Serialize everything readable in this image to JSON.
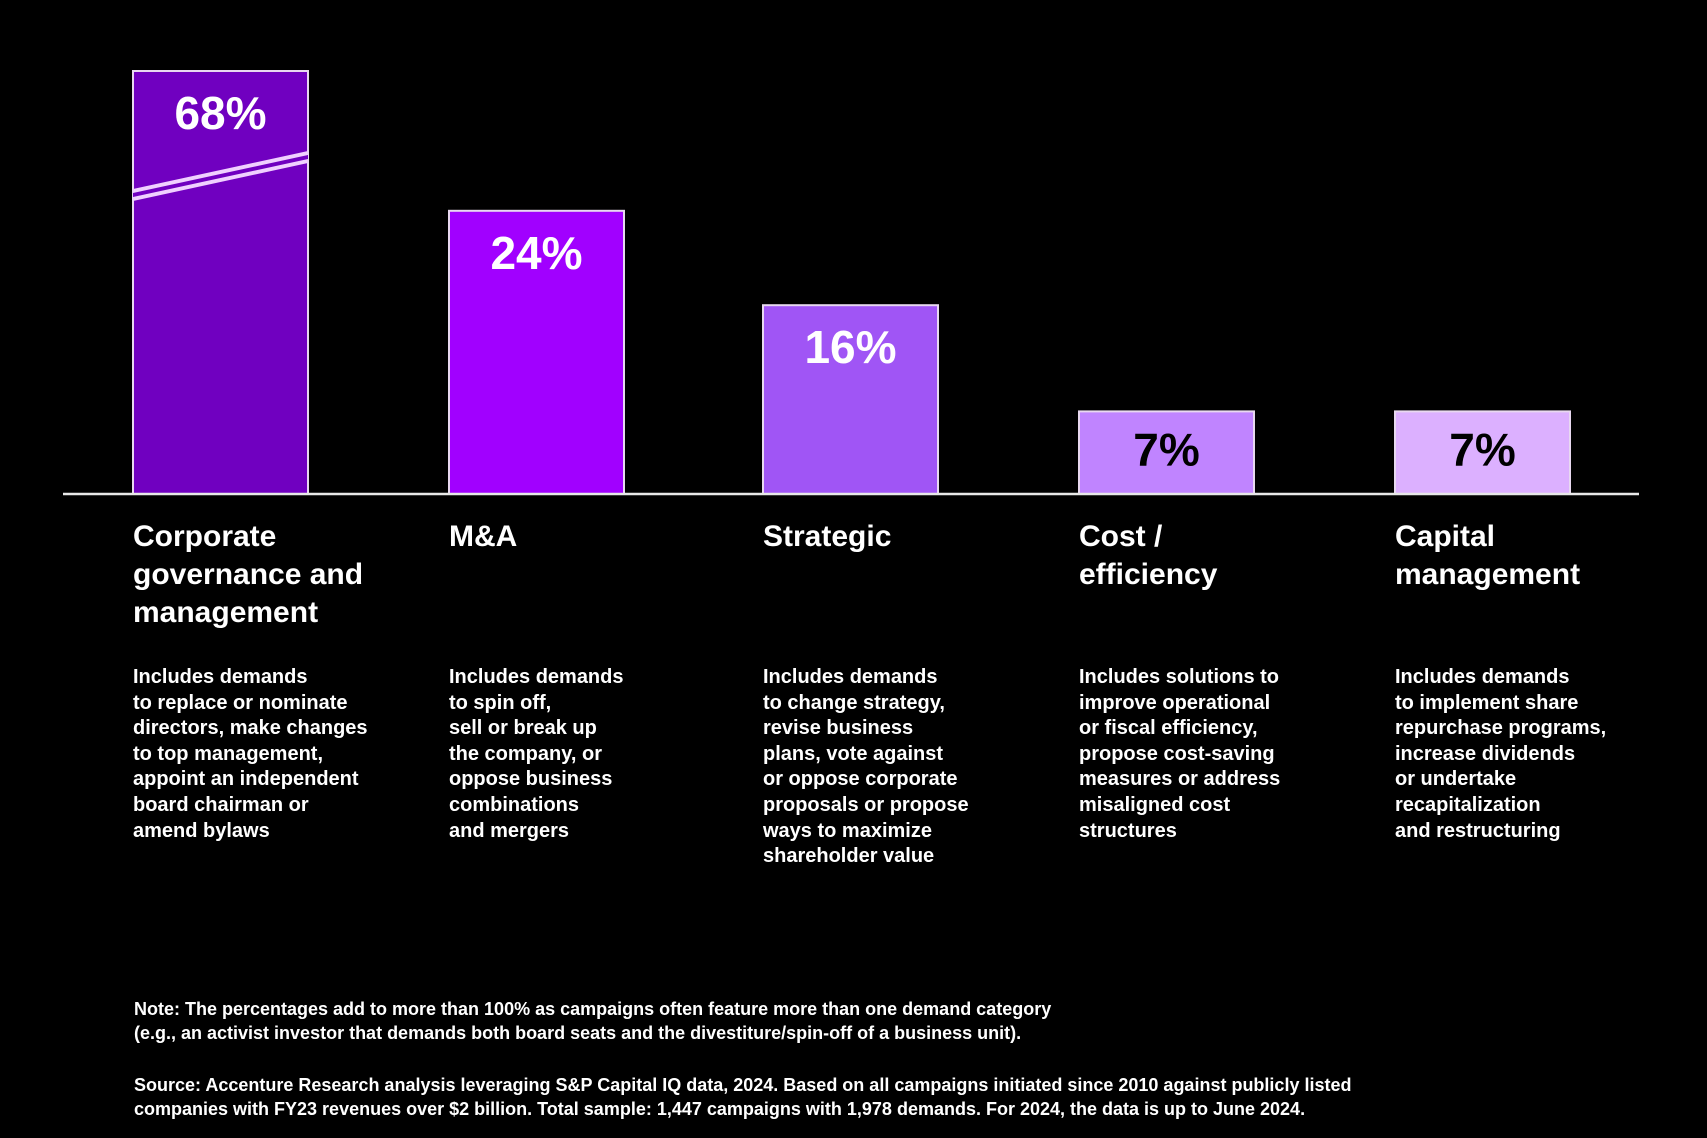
{
  "chart_data": {
    "type": "bar",
    "categories": [
      "Corporate governance and management",
      "M&A",
      "Strategic",
      "Cost / efficiency",
      "Capital management"
    ],
    "values": [
      68,
      24,
      16,
      7,
      7
    ],
    "data_labels": [
      "68%",
      "24%",
      "16%",
      "7%",
      "7%"
    ],
    "colors": [
      "#7000c0",
      "#a100ff",
      "#a055f5",
      "#c084ff",
      "#dcb0ff"
    ],
    "label_colors": [
      "#ffffff",
      "#ffffff",
      "#ffffff",
      "#000000",
      "#000000"
    ],
    "axis_break_on_first_bar": true,
    "grid": false,
    "title": "",
    "xlabel": "",
    "ylabel": ""
  },
  "category_lines": [
    [
      "Corporate",
      "governance and",
      "management"
    ],
    [
      "M&A"
    ],
    [
      "Strategic"
    ],
    [
      "Cost /",
      "efficiency"
    ],
    [
      "Capital",
      "management"
    ]
  ],
  "descriptions": [
    [
      "Includes demands",
      "to replace or nominate",
      "directors, make changes",
      "to top management,",
      "appoint an independent",
      "board chairman or",
      "amend bylaws"
    ],
    [
      "Includes demands",
      "to spin off,",
      "sell or break up",
      "the company, or",
      "oppose business",
      "combinations",
      "and mergers"
    ],
    [
      "Includes demands",
      "to change strategy,",
      "revise business",
      "plans, vote against",
      "or oppose corporate",
      "proposals or propose",
      "ways to maximize",
      "shareholder value"
    ],
    [
      "Includes solutions to",
      "improve operational",
      "or fiscal efficiency,",
      "propose cost-saving",
      "measures or address",
      "misaligned cost",
      "structures"
    ],
    [
      "Includes demands",
      "to implement share",
      "repurchase programs,",
      "increase dividends",
      "or undertake",
      "recapitalization",
      "and restructuring"
    ]
  ],
  "note": [
    "Note: The percentages add to more than 100% as campaigns often feature more than one demand category",
    "(e.g., an activist investor that demands both board seats and the divestiture/spin-off of a business unit)."
  ],
  "source": [
    "Source: Accenture Research analysis leveraging S&P Capital IQ data, 2024. Based on all campaigns initiated since 2010 against publicly listed",
    "companies with FY23 revenues over $2 billion.   Total sample: 1,447 campaigns with 1,978 demands. For 2024, the data is up to June 2024."
  ]
}
